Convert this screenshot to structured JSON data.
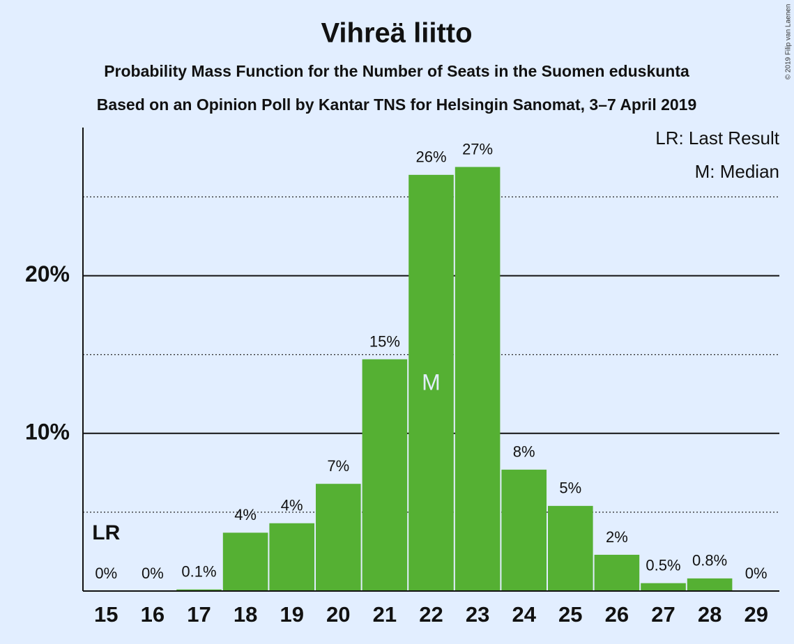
{
  "chart_data": {
    "type": "bar",
    "title": "Vihreä liitto",
    "subtitle": "Probability Mass Function for the Number of Seats in the Suomen eduskunta",
    "subtitle2": "Based on an Opinion Poll by Kantar TNS for Helsingin Sanomat, 3–7 April 2019",
    "copyright": "© 2019 Filip van Laenen",
    "categories": [
      "15",
      "16",
      "17",
      "18",
      "19",
      "20",
      "21",
      "22",
      "23",
      "24",
      "25",
      "26",
      "27",
      "28",
      "29"
    ],
    "values": [
      0,
      0,
      0.1,
      3.7,
      4.3,
      6.8,
      14.7,
      26.4,
      26.9,
      7.7,
      5.4,
      2.3,
      0.5,
      0.8,
      0
    ],
    "value_labels": [
      "0%",
      "0%",
      "0.1%",
      "4%",
      "4%",
      "7%",
      "15%",
      "26%",
      "27%",
      "8%",
      "5%",
      "2%",
      "0.5%",
      "0.8%",
      "0%"
    ],
    "color": "#55b033",
    "ylim": [
      0,
      29.4
    ],
    "yticks": [
      {
        "value": 10,
        "label": "10%"
      },
      {
        "value": 20,
        "label": "20%"
      }
    ],
    "minor_yticks": [
      5,
      15,
      25
    ],
    "grid": true,
    "last_result": {
      "label": "LR",
      "category": "15"
    },
    "median": {
      "label": "M",
      "category": "22"
    },
    "legend": [
      "LR: Last Result",
      "M: Median"
    ]
  }
}
